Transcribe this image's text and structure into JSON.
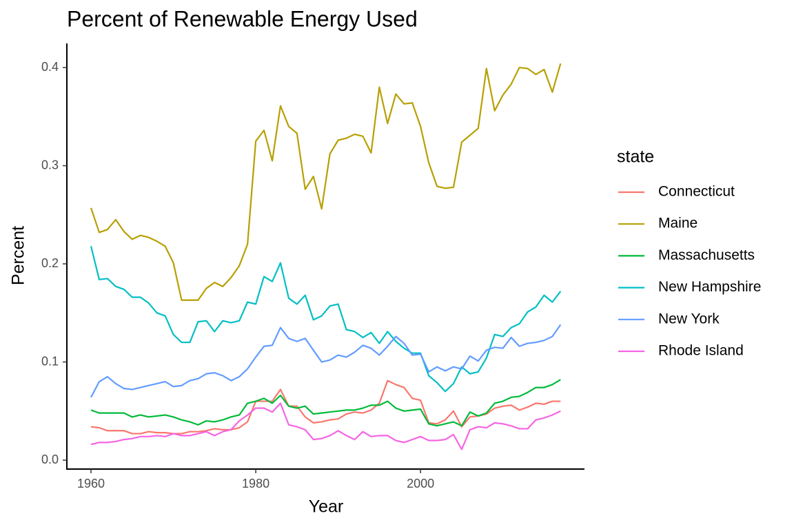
{
  "chart_data": {
    "type": "line",
    "title": "Percent of Renewable Energy Used",
    "x_label": "Year",
    "y_label": "Percent",
    "legend_title": "state",
    "legend_position": "right",
    "grid": false,
    "x": [
      1960,
      1961,
      1962,
      1963,
      1964,
      1965,
      1966,
      1967,
      1968,
      1969,
      1970,
      1971,
      1972,
      1973,
      1974,
      1975,
      1976,
      1977,
      1978,
      1979,
      1980,
      1981,
      1982,
      1983,
      1984,
      1985,
      1986,
      1987,
      1988,
      1989,
      1990,
      1991,
      1992,
      1993,
      1994,
      1995,
      1996,
      1997,
      1998,
      1999,
      2000,
      2001,
      2002,
      2003,
      2004,
      2005,
      2006,
      2007,
      2008,
      2009,
      2010,
      2011,
      2012,
      2013,
      2014,
      2015,
      2016,
      2017
    ],
    "xlim": [
      1957.07,
      2019.9
    ],
    "xticks": [
      1960,
      1980,
      2000
    ],
    "ylim": [
      -0.0091,
      0.4246
    ],
    "yticks": [
      {
        "value": 0,
        "label": "0.0"
      },
      0.1,
      0.2,
      0.3,
      0.4
    ],
    "series": [
      {
        "name": "Connecticut",
        "color": "#F8766D",
        "values": [
          0.034,
          0.033,
          0.03,
          0.03,
          0.03,
          0.027,
          0.027,
          0.029,
          0.028,
          0.028,
          0.027,
          0.027,
          0.029,
          0.029,
          0.03,
          0.032,
          0.031,
          0.031,
          0.033,
          0.039,
          0.06,
          0.06,
          0.06,
          0.072,
          0.055,
          0.055,
          0.044,
          0.038,
          0.039,
          0.041,
          0.042,
          0.047,
          0.049,
          0.048,
          0.051,
          0.058,
          0.081,
          0.077,
          0.074,
          0.063,
          0.061,
          0.038,
          0.037,
          0.041,
          0.05,
          0.034,
          0.044,
          0.045,
          0.047,
          0.053,
          0.055,
          0.056,
          0.051,
          0.054,
          0.058,
          0.057,
          0.06,
          0.06
        ]
      },
      {
        "name": "Maine",
        "color": "#B79F00",
        "values": [
          0.257,
          0.232,
          0.235,
          0.245,
          0.233,
          0.225,
          0.229,
          0.227,
          0.223,
          0.218,
          0.201,
          0.163,
          0.163,
          0.163,
          0.175,
          0.181,
          0.177,
          0.186,
          0.198,
          0.22,
          0.325,
          0.336,
          0.305,
          0.361,
          0.34,
          0.333,
          0.276,
          0.289,
          0.256,
          0.312,
          0.326,
          0.328,
          0.332,
          0.33,
          0.313,
          0.38,
          0.343,
          0.373,
          0.363,
          0.364,
          0.34,
          0.303,
          0.279,
          0.277,
          0.278,
          0.324,
          0.331,
          0.338,
          0.399,
          0.356,
          0.372,
          0.383,
          0.4,
          0.399,
          0.393,
          0.398,
          0.375,
          0.404
        ]
      },
      {
        "name": "Massachusetts",
        "color": "#00BA38",
        "values": [
          0.051,
          0.048,
          0.048,
          0.048,
          0.048,
          0.044,
          0.046,
          0.044,
          0.045,
          0.046,
          0.044,
          0.041,
          0.039,
          0.036,
          0.04,
          0.039,
          0.041,
          0.044,
          0.046,
          0.058,
          0.06,
          0.063,
          0.058,
          0.066,
          0.055,
          0.053,
          0.055,
          0.047,
          0.048,
          0.049,
          0.05,
          0.051,
          0.051,
          0.053,
          0.056,
          0.056,
          0.06,
          0.053,
          0.05,
          0.051,
          0.052,
          0.037,
          0.035,
          0.037,
          0.039,
          0.035,
          0.049,
          0.045,
          0.048,
          0.058,
          0.06,
          0.064,
          0.065,
          0.069,
          0.074,
          0.074,
          0.077,
          0.082
        ]
      },
      {
        "name": "New Hampshire",
        "color": "#00BFC4",
        "values": [
          0.218,
          0.184,
          0.185,
          0.177,
          0.174,
          0.166,
          0.166,
          0.16,
          0.15,
          0.147,
          0.128,
          0.12,
          0.12,
          0.141,
          0.142,
          0.131,
          0.142,
          0.14,
          0.142,
          0.161,
          0.159,
          0.187,
          0.182,
          0.201,
          0.165,
          0.159,
          0.168,
          0.143,
          0.147,
          0.157,
          0.159,
          0.133,
          0.131,
          0.125,
          0.13,
          0.119,
          0.131,
          0.121,
          0.114,
          0.109,
          0.109,
          0.086,
          0.079,
          0.07,
          0.078,
          0.095,
          0.088,
          0.09,
          0.104,
          0.128,
          0.126,
          0.135,
          0.139,
          0.151,
          0.156,
          0.168,
          0.161,
          0.172
        ]
      },
      {
        "name": "New York",
        "color": "#619CFF",
        "values": [
          0.064,
          0.08,
          0.085,
          0.078,
          0.073,
          0.072,
          0.074,
          0.076,
          0.078,
          0.08,
          0.075,
          0.076,
          0.081,
          0.083,
          0.088,
          0.089,
          0.086,
          0.081,
          0.085,
          0.093,
          0.105,
          0.116,
          0.117,
          0.135,
          0.124,
          0.121,
          0.124,
          0.112,
          0.1,
          0.102,
          0.107,
          0.105,
          0.11,
          0.117,
          0.114,
          0.107,
          0.116,
          0.126,
          0.119,
          0.107,
          0.108,
          0.09,
          0.095,
          0.091,
          0.095,
          0.093,
          0.106,
          0.101,
          0.112,
          0.115,
          0.114,
          0.125,
          0.116,
          0.119,
          0.12,
          0.122,
          0.126,
          0.138
        ]
      },
      {
        "name": "Rhode Island",
        "color": "#F564E3",
        "values": [
          0.016,
          0.018,
          0.018,
          0.019,
          0.021,
          0.022,
          0.024,
          0.024,
          0.025,
          0.024,
          0.027,
          0.025,
          0.025,
          0.027,
          0.029,
          0.025,
          0.029,
          0.031,
          0.04,
          0.046,
          0.053,
          0.053,
          0.049,
          0.058,
          0.036,
          0.034,
          0.031,
          0.021,
          0.022,
          0.025,
          0.03,
          0.025,
          0.021,
          0.029,
          0.024,
          0.025,
          0.025,
          0.02,
          0.018,
          0.021,
          0.024,
          0.02,
          0.02,
          0.021,
          0.026,
          0.011,
          0.031,
          0.034,
          0.033,
          0.038,
          0.037,
          0.035,
          0.032,
          0.032,
          0.041,
          0.043,
          0.046,
          0.05
        ]
      }
    ]
  }
}
